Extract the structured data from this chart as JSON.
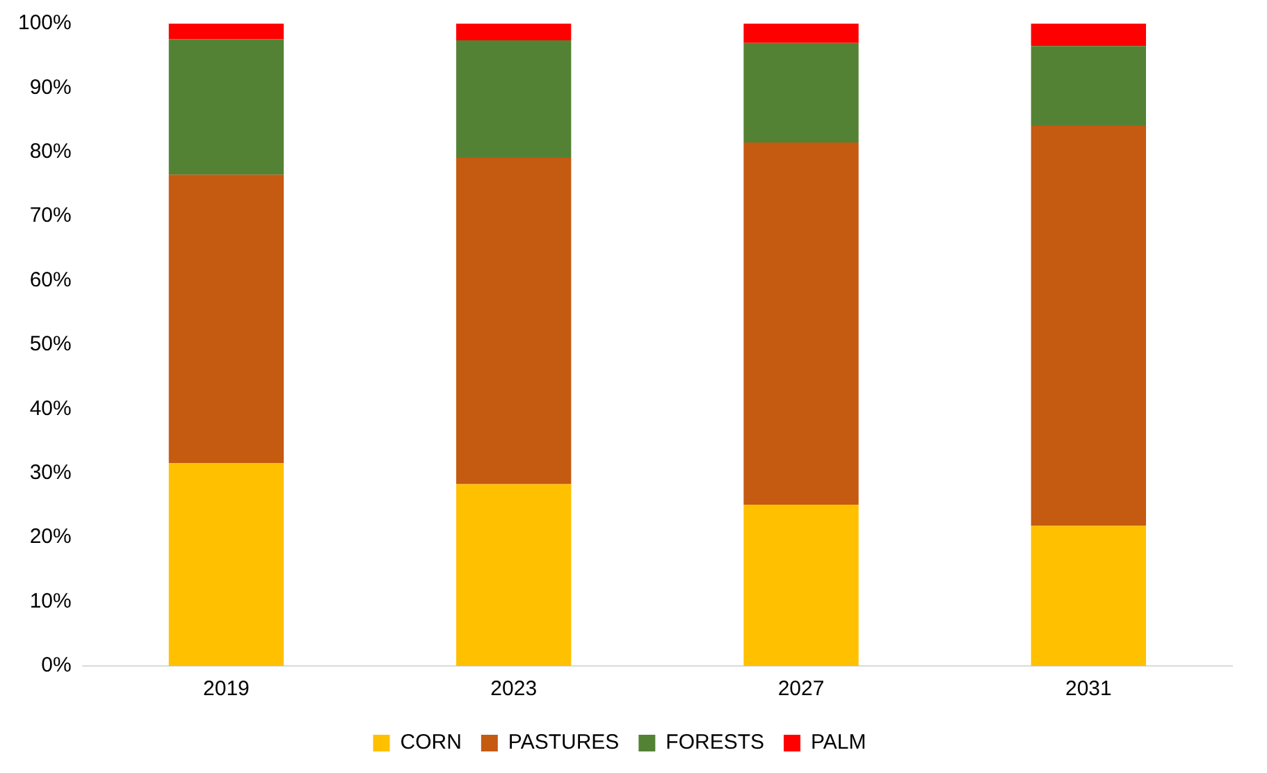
{
  "chart_data": {
    "type": "bar",
    "stacked": true,
    "categories": [
      "2019",
      "2023",
      "2027",
      "2031"
    ],
    "series": [
      {
        "name": "CORN",
        "color": "#ffc000",
        "values": [
          31.6,
          28.3,
          25.1,
          21.8
        ]
      },
      {
        "name": "PASTURES",
        "color": "#c55a11",
        "values": [
          44.9,
          50.8,
          56.4,
          62.3
        ]
      },
      {
        "name": "FORESTS",
        "color": "#548235",
        "values": [
          21.1,
          18.3,
          15.5,
          12.4
        ]
      },
      {
        "name": "PALM",
        "color": "#ff0000",
        "values": [
          2.4,
          2.6,
          3.0,
          3.5
        ]
      }
    ],
    "ylim": [
      0,
      100
    ],
    "yticks": [
      {
        "value": 0,
        "label": "0%"
      },
      {
        "value": 10,
        "label": "10%"
      },
      {
        "value": 20,
        "label": "20%"
      },
      {
        "value": 30,
        "label": "30%"
      },
      {
        "value": 40,
        "label": "40%"
      },
      {
        "value": 50,
        "label": "50%"
      },
      {
        "value": 60,
        "label": "60%"
      },
      {
        "value": 70,
        "label": "70%"
      },
      {
        "value": 80,
        "label": "80%"
      },
      {
        "value": 90,
        "label": "90%"
      },
      {
        "value": 100,
        "label": "100%"
      }
    ],
    "grid": false,
    "legend": "bottom"
  }
}
